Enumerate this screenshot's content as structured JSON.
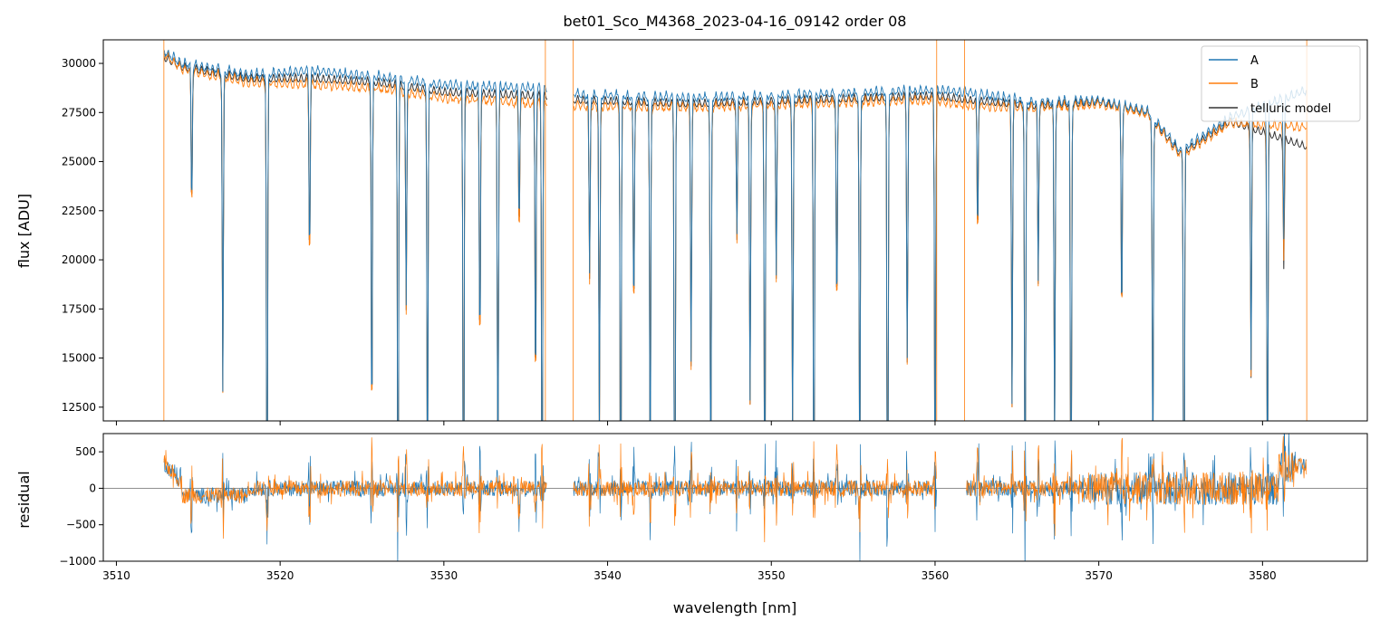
{
  "chart_data": [
    {
      "type": "line",
      "title": "bet01_Sco_M4368_2023-04-16_09142  order 08",
      "xlabel": "",
      "ylabel": "flux [ADU]",
      "xlim": [
        3509.2,
        3586.4
      ],
      "ylim": [
        11800,
        31200
      ],
      "yticks": [
        12500,
        15000,
        17500,
        20000,
        22500,
        25000,
        27500,
        30000
      ],
      "grid": false,
      "legend": "top-right",
      "x_range_data": [
        3512.9,
        3582.7
      ],
      "gap": [
        3536.3,
        3537.9
      ],
      "absorption_lines": [
        3514.6,
        3516.5,
        3519.2,
        3521.8,
        3525.6,
        3527.2,
        3527.7,
        3529.0,
        3531.2,
        3532.2,
        3533.3,
        3534.6,
        3535.6,
        3536.0,
        3538.9,
        3539.5,
        3540.8,
        3541.6,
        3542.6,
        3544.1,
        3545.1,
        3546.3,
        3547.9,
        3548.7,
        3549.6,
        3550.3,
        3551.3,
        3552.6,
        3554.0,
        3555.4,
        3557.1,
        3558.3,
        3560.0,
        3562.6,
        3564.7,
        3565.5,
        3566.3,
        3567.3,
        3568.3,
        3571.4,
        3573.3,
        3575.2,
        3579.3,
        3580.3,
        3581.3
      ],
      "series": [
        {
          "name": "A",
          "color": "#1f77b4",
          "continuum": [
            [
              3512.9,
              30900
            ],
            [
              3514.0,
              30300
            ],
            [
              3518.0,
              29700
            ],
            [
              3522.0,
              29900
            ],
            [
              3526.0,
              29600
            ],
            [
              3530.0,
              29200
            ],
            [
              3536.0,
              29000
            ],
            [
              3538.0,
              28700
            ],
            [
              3545.0,
              28500
            ],
            [
              3552.0,
              28700
            ],
            [
              3560.0,
              28900
            ],
            [
              3562.0,
              28800
            ],
            [
              3566.0,
              28300
            ],
            [
              3570.0,
              28400
            ],
            [
              3573.0,
              27800
            ],
            [
              3575.0,
              25800
            ],
            [
              3578.0,
              27500
            ],
            [
              3582.7,
              28900
            ]
          ]
        },
        {
          "name": "B",
          "color": "#ff7f0e",
          "continuum": [
            [
              3512.9,
              30800
            ],
            [
              3514.0,
              30000
            ],
            [
              3518.0,
              29300
            ],
            [
              3522.0,
              29200
            ],
            [
              3526.0,
              29000
            ],
            [
              3530.0,
              28500
            ],
            [
              3536.0,
              28200
            ],
            [
              3538.0,
              28100
            ],
            [
              3545.0,
              28000
            ],
            [
              3552.0,
              28200
            ],
            [
              3560.0,
              28400
            ],
            [
              3562.0,
              28100
            ],
            [
              3566.0,
              28000
            ],
            [
              3570.0,
              28200
            ],
            [
              3573.0,
              27700
            ],
            [
              3575.0,
              25500
            ],
            [
              3578.0,
              27200
            ],
            [
              3582.7,
              27000
            ]
          ]
        },
        {
          "name": "telluric model",
          "color": "#000000",
          "continuum": [
            [
              3512.9,
              30600
            ],
            [
              3514.0,
              30100
            ],
            [
              3518.0,
              29500
            ],
            [
              3522.0,
              29500
            ],
            [
              3526.0,
              29300
            ],
            [
              3530.0,
              28800
            ],
            [
              3536.0,
              28600
            ],
            [
              3538.0,
              28400
            ],
            [
              3545.0,
              28200
            ],
            [
              3552.0,
              28400
            ],
            [
              3560.0,
              28600
            ],
            [
              3562.0,
              28400
            ],
            [
              3566.0,
              28100
            ],
            [
              3570.0,
              28300
            ],
            [
              3573.0,
              27700
            ],
            [
              3575.0,
              25600
            ],
            [
              3578.0,
              27300
            ],
            [
              3582.7,
              26000
            ]
          ]
        }
      ]
    },
    {
      "type": "line",
      "title": "",
      "xlabel": "wavelength [nm]",
      "ylabel": "residual",
      "xlim": [
        3509.2,
        3586.4
      ],
      "ylim": [
        -1000,
        750
      ],
      "yticks": [
        -1000,
        -500,
        0,
        500
      ],
      "xticks": [
        3510,
        3520,
        3530,
        3540,
        3550,
        3560,
        3570,
        3580
      ],
      "grid": false,
      "zero_line": true,
      "series": [
        {
          "name": "A",
          "color": "#1f77b4"
        },
        {
          "name": "B",
          "color": "#ff7f0e"
        }
      ]
    }
  ]
}
